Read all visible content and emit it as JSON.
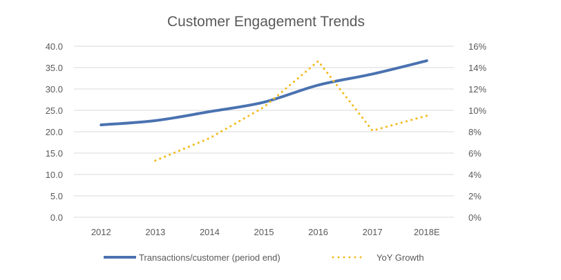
{
  "chart_data": {
    "type": "line",
    "title": "Customer Engagement Trends",
    "xlabel": "",
    "ylabel": "",
    "y2label": "",
    "categories": [
      "2012",
      "2013",
      "2014",
      "2015",
      "2016",
      "2017",
      "2018E"
    ],
    "ylim": [
      0,
      40
    ],
    "y_ticks": [
      "0.0",
      "5.0",
      "10.0",
      "15.0",
      "20.0",
      "25.0",
      "30.0",
      "35.0",
      "40.0"
    ],
    "y2lim": [
      0,
      16
    ],
    "y2_ticks": [
      "0%",
      "2%",
      "4%",
      "6%",
      "8%",
      "10%",
      "12%",
      "14%",
      "16%"
    ],
    "grid": true,
    "legend_position": "bottom",
    "series": [
      {
        "name": "Transactions/customer (period end)",
        "axis": "left",
        "style": "solid",
        "color": "#4a72b0",
        "values": [
          21.6,
          22.6,
          24.7,
          26.9,
          30.9,
          33.5,
          36.6
        ]
      },
      {
        "name": "YoY Growth",
        "axis": "right",
        "style": "dotted",
        "color": "#f2bd25",
        "unit": "%",
        "values": [
          null,
          5.3,
          7.4,
          10.3,
          14.6,
          8.1,
          9.5
        ]
      }
    ]
  }
}
